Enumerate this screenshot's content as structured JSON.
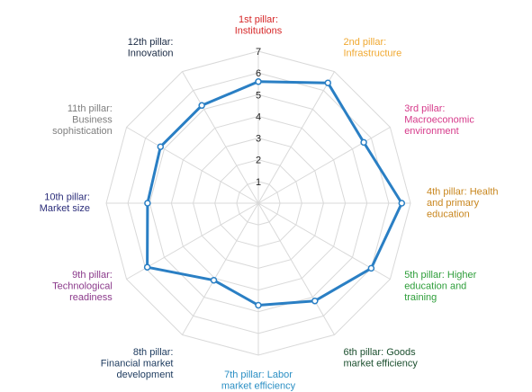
{
  "chart_data": {
    "type": "radar",
    "categories": [
      "1st pillar: Institutions",
      "2nd pillar: Infrastructure",
      "3rd pillar: Macroeconomic environment",
      "4th pillar: Health and primary education",
      "5th pillar: Higher education and training",
      "6th pillar: Goods market efficiency",
      "7th pillar: Labor market efficiency",
      "8th pillar: Financial market development",
      "9th pillar: Technological readiness",
      "10th pillar: Market size",
      "11th pillar: Business sophistication",
      "12th pillar: Innovation"
    ],
    "label_lines": [
      [
        "1st pillar:",
        "Institutions"
      ],
      [
        "2nd pillar:",
        "Infrastructure"
      ],
      [
        "3rd pillar:",
        "Macroeconomic",
        "environment"
      ],
      [
        "4th pillar: Health",
        "and primary",
        "education"
      ],
      [
        "5th pillar: Higher",
        "education and",
        "training"
      ],
      [
        "6th pillar: Goods",
        "market efficiency"
      ],
      [
        "7th pillar: Labor",
        "market efficiency"
      ],
      [
        "8th pillar:",
        "Financial market",
        "development"
      ],
      [
        "9th pillar:",
        "Technological",
        "readiness"
      ],
      [
        "10th pillar:",
        "Market size"
      ],
      [
        "11th pillar:",
        "Business",
        "sophistication"
      ],
      [
        "12th pillar:",
        "Innovation"
      ]
    ],
    "label_colors": [
      "#d62728",
      "#f0a830",
      "#d63a8a",
      "#c8861e",
      "#2e9e3a",
      "#1b4f2e",
      "#2b8fc4",
      "#1c3a5e",
      "#8b3a8b",
      "#2b2d7a",
      "#7f7f7f",
      "#1a2a44"
    ],
    "series": [
      {
        "values": [
          5.6,
          6.4,
          5.6,
          6.6,
          6.0,
          5.2,
          4.7,
          4.1,
          5.9,
          5.1,
          5.2,
          5.2
        ],
        "color": "#2a7fc4"
      }
    ],
    "ticks": [
      "1",
      "2",
      "3",
      "4",
      "5",
      "6",
      "7"
    ],
    "rmin": 0,
    "rmax": 7,
    "grid": true
  }
}
